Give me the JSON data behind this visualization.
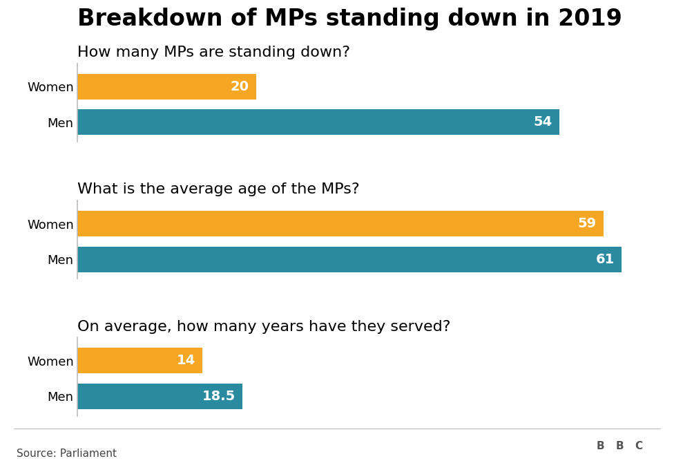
{
  "title": "Breakdown of MPs standing down in 2019",
  "sections": [
    {
      "question": "How many MPs are standing down?",
      "women_value": 20,
      "men_value": 54,
      "women_label": "20",
      "men_label": "54"
    },
    {
      "question": "What is the average age of the MPs?",
      "women_value": 59,
      "men_value": 61,
      "women_label": "59",
      "men_label": "61"
    },
    {
      "question": "On average, how many years have they served?",
      "women_value": 14,
      "men_value": 18.5,
      "women_label": "14",
      "men_label": "18.5"
    }
  ],
  "max_val": 65,
  "women_color": "#F5A623",
  "men_color": "#2A8BA0",
  "bar_height": 0.72,
  "label_fontsize": 14,
  "question_fontsize": 16,
  "title_fontsize": 24,
  "ytick_fontsize": 13,
  "source_text": "Source: Parliament",
  "bbc_text": "BBC",
  "background_color": "#FFFFFF"
}
